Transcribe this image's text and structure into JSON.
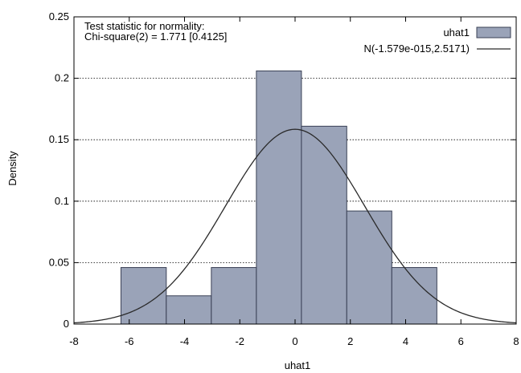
{
  "chart_data": {
    "type": "bar",
    "xlabel": "uhat1",
    "ylabel": "Density",
    "xlim": [
      -8,
      8
    ],
    "ylim": [
      0,
      0.25
    ],
    "x_ticks": [
      "-8",
      "-6",
      "-4",
      "-2",
      "0",
      "2",
      "4",
      "6",
      "8"
    ],
    "y_ticks": [
      "0",
      "0.05",
      "0.1",
      "0.15",
      "0.2",
      "0.25"
    ],
    "grid": "horizontal dotted",
    "legend_placement": "top-right",
    "annotation": [
      "Test statistic for normality:",
      "Chi-square(2) = 1.771 [0.4125]"
    ],
    "histogram": {
      "name": "uhat1",
      "color": "#9aa3b8",
      "edge_color": "#3a4055",
      "bins": [
        {
          "x0": -6.3,
          "x1": -4.66,
          "density": 0.046
        },
        {
          "x0": -4.66,
          "x1": -3.03,
          "density": 0.023
        },
        {
          "x0": -3.03,
          "x1": -1.4,
          "density": 0.046
        },
        {
          "x0": -1.4,
          "x1": 0.23,
          "density": 0.206
        },
        {
          "x0": 0.23,
          "x1": 1.87,
          "density": 0.161
        },
        {
          "x0": 1.87,
          "x1": 3.5,
          "density": 0.092
        },
        {
          "x0": 3.5,
          "x1": 5.13,
          "density": 0.046
        }
      ]
    },
    "normal_curve": {
      "name": "N(-1.579e-015,2.5171)",
      "mean": 0,
      "sd": 2.5171,
      "color": "#2a2a2a"
    }
  }
}
